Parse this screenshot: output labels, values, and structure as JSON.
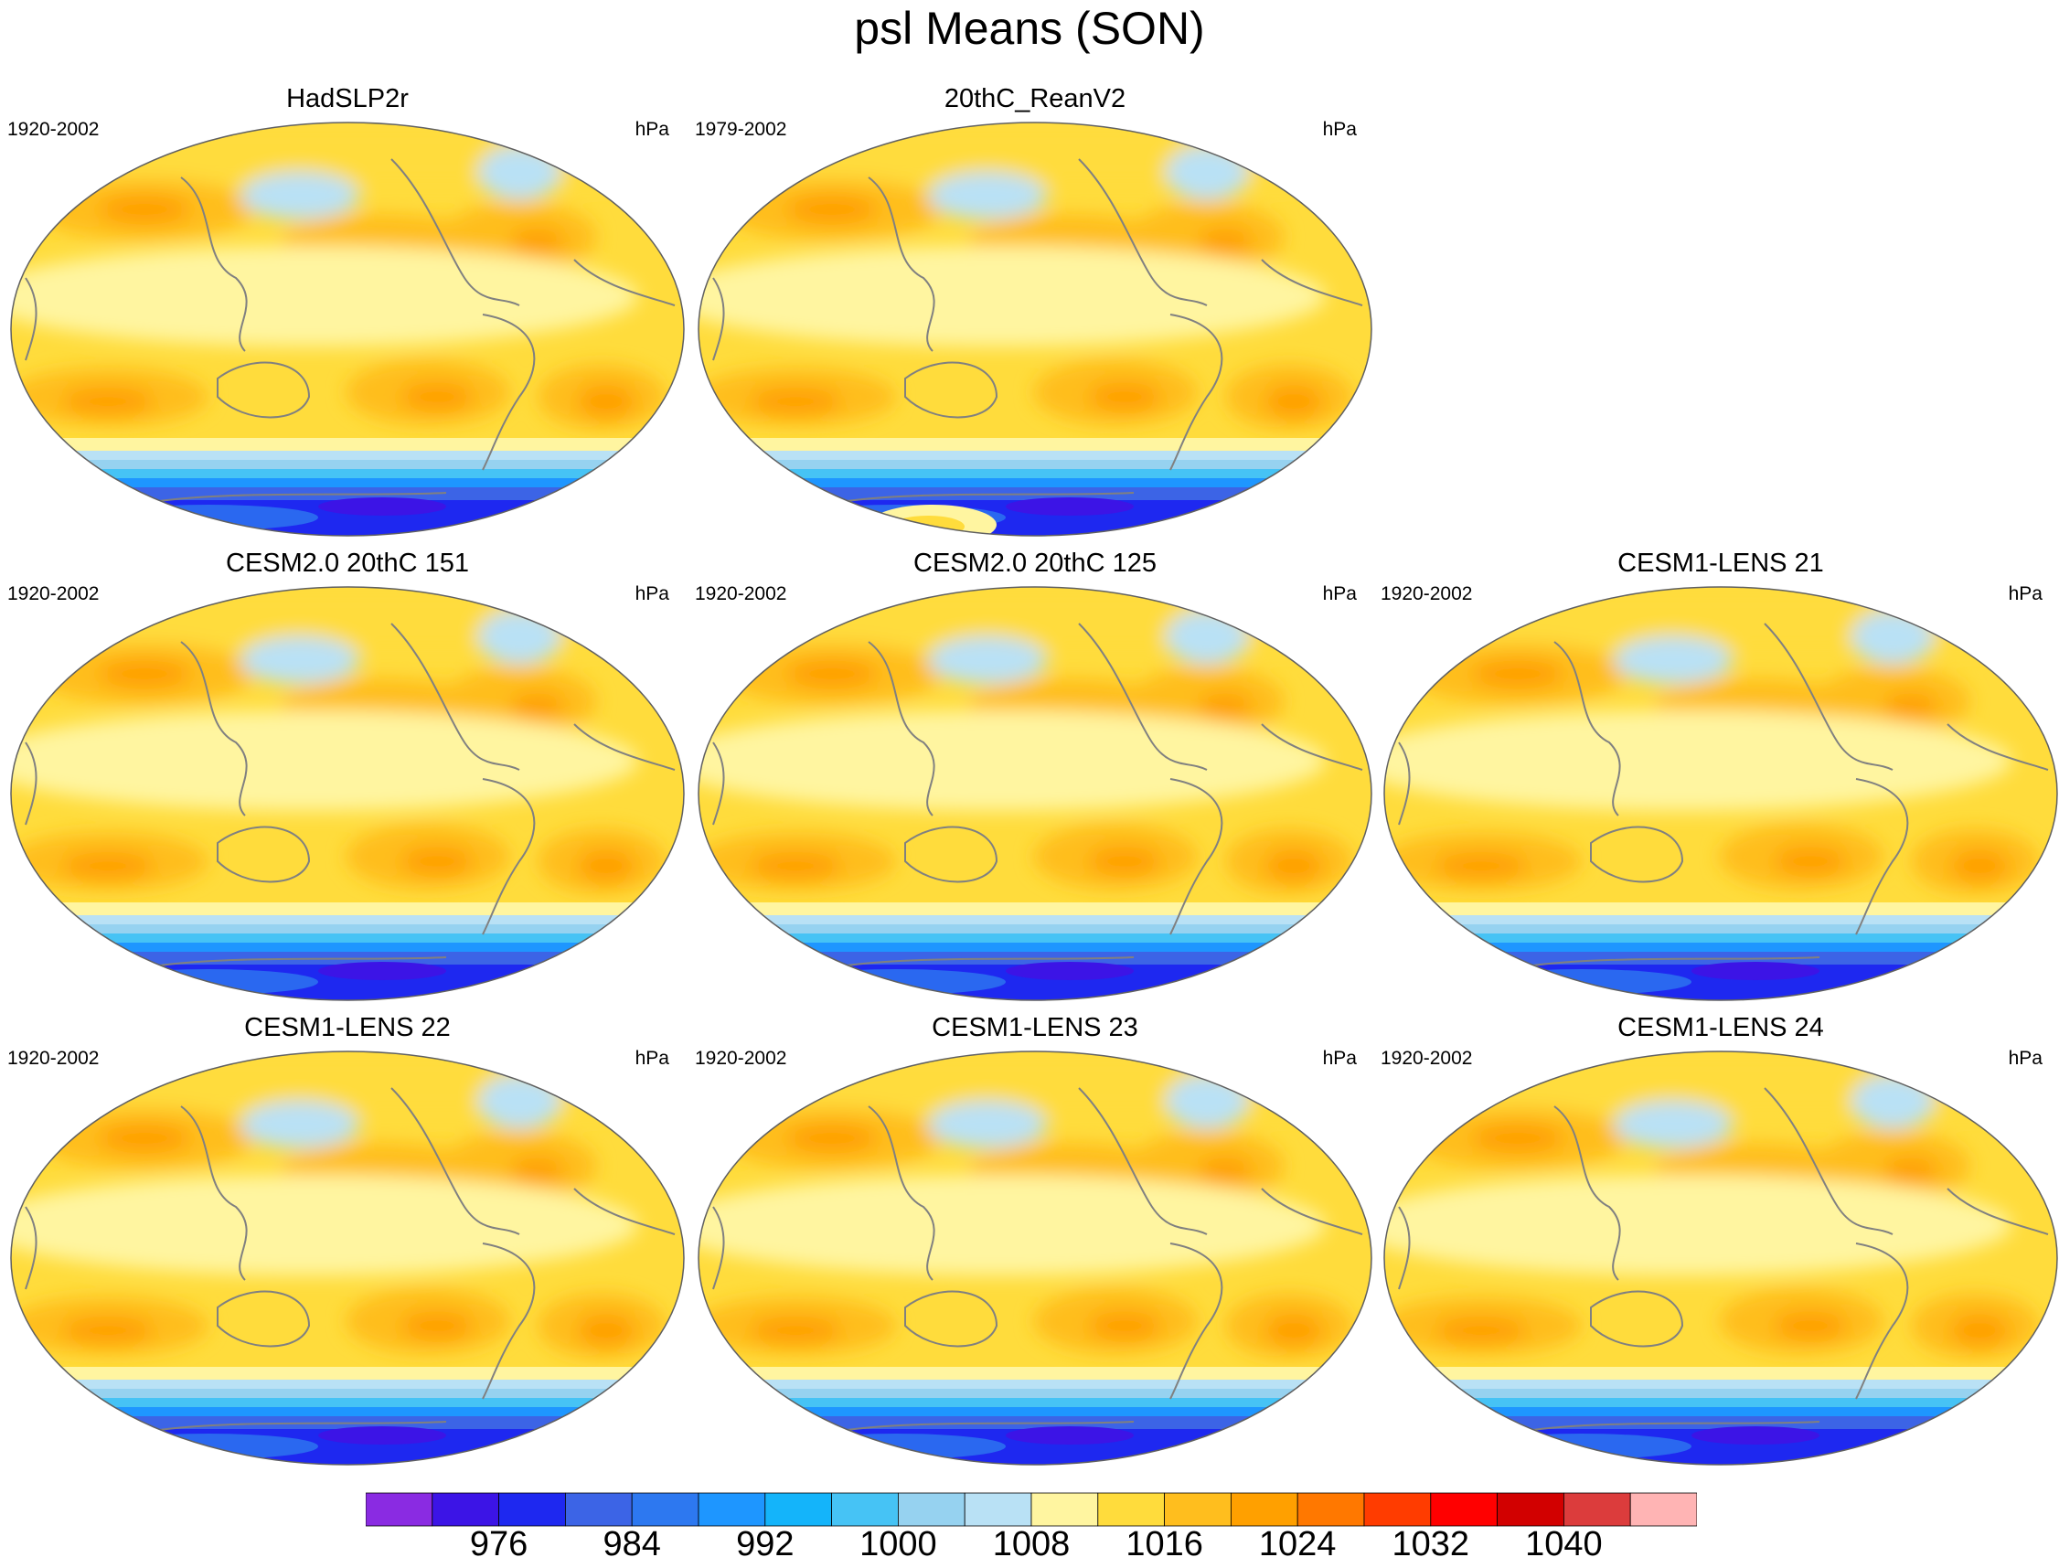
{
  "figure": {
    "title": "psl Means (SON)",
    "units": "hPa"
  },
  "panels": [
    {
      "title": "HadSLP2r",
      "period": "1920-2002",
      "units": "hPa",
      "antarctic_anomaly": false
    },
    {
      "title": "20thC_ReanV2",
      "period": "1979-2002",
      "units": "hPa",
      "antarctic_anomaly": true
    },
    {
      "title": "CESM2.0 20thC 151",
      "period": "1920-2002",
      "units": "hPa",
      "antarctic_anomaly": false
    },
    {
      "title": "CESM2.0 20thC 125",
      "period": "1920-2002",
      "units": "hPa",
      "antarctic_anomaly": false
    },
    {
      "title": "CESM1-LENS 21",
      "period": "1920-2002",
      "units": "hPa",
      "antarctic_anomaly": false
    },
    {
      "title": "CESM1-LENS 22",
      "period": "1920-2002",
      "units": "hPa",
      "antarctic_anomaly": false
    },
    {
      "title": "CESM1-LENS 23",
      "period": "1920-2002",
      "units": "hPa",
      "antarctic_anomaly": false
    },
    {
      "title": "CESM1-LENS 24",
      "period": "1920-2002",
      "units": "hPa",
      "antarctic_anomaly": false
    }
  ],
  "colorbar": {
    "colors": [
      "#8a2be2",
      "#3c14e6",
      "#1e28f0",
      "#3c64e6",
      "#2d78f0",
      "#1e96ff",
      "#14b4fa",
      "#46c3f5",
      "#96d2f0",
      "#b9e1f5",
      "#fff5a0",
      "#ffdc3c",
      "#ffbe1e",
      "#ffa000",
      "#ff7800",
      "#ff3c00",
      "#ff0000",
      "#d20000",
      "#dc3c3c",
      "#ffb4b4"
    ],
    "labels": [
      "976",
      "984",
      "992",
      "1000",
      "1008",
      "1016",
      "1024",
      "1032",
      "1040"
    ]
  }
}
